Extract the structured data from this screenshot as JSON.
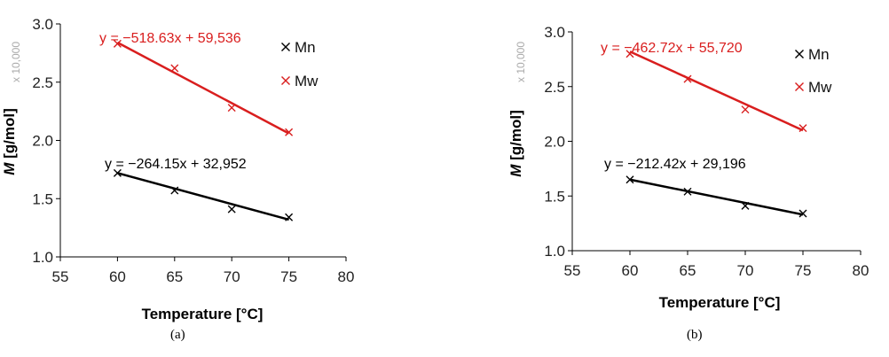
{
  "chart_data": [
    {
      "type": "scatter",
      "caption": "(a)",
      "xlabel": "Temperature [°C]",
      "ylabel_symbol": "M",
      "ylabel_unit": "[g/mol]",
      "ylabel_multiplier": "x 10,000",
      "xlim": [
        55,
        80
      ],
      "ylim": [
        1.0,
        3.0
      ],
      "xticks": [
        "55",
        "60",
        "65",
        "70",
        "75",
        "80"
      ],
      "yticks": [
        "1.0",
        "1.5",
        "2.0",
        "2.5",
        "3.0"
      ],
      "grid": false,
      "legend": "top-right",
      "series": [
        {
          "name": "Mn",
          "marker": "x",
          "color": "#000000",
          "x": [
            60,
            65,
            70,
            75
          ],
          "y": [
            1.72,
            1.57,
            1.41,
            1.34
          ],
          "trendline": {
            "equation": "y = −264.15x + 32,952",
            "y_start": 1.72,
            "y_end": 1.32
          }
        },
        {
          "name": "Mw",
          "marker": "x",
          "color": "#d91e1e",
          "x": [
            60,
            65,
            70,
            75
          ],
          "y": [
            2.83,
            2.62,
            2.28,
            2.07
          ],
          "trendline": {
            "equation": "y = −518.63x + 59,536",
            "y_start": 2.84,
            "y_end": 2.06
          }
        }
      ]
    },
    {
      "type": "scatter",
      "caption": "(b)",
      "xlabel": "Temperature [°C]",
      "ylabel_symbol": "M",
      "ylabel_unit": "[g/mol]",
      "ylabel_multiplier": "x 10,000",
      "xlim": [
        55,
        80
      ],
      "ylim": [
        1.0,
        3.0
      ],
      "xticks": [
        "55",
        "60",
        "65",
        "70",
        "75",
        "80"
      ],
      "yticks": [
        "1.0",
        "1.5",
        "2.0",
        "2.5",
        "3.0"
      ],
      "grid": false,
      "legend": "top-right",
      "series": [
        {
          "name": "Mn",
          "marker": "x",
          "color": "#000000",
          "x": [
            60,
            65,
            70,
            75
          ],
          "y": [
            1.65,
            1.54,
            1.41,
            1.34
          ],
          "trendline": {
            "equation": "y = −212.42x + 29,196",
            "y_start": 1.65,
            "y_end": 1.33
          }
        },
        {
          "name": "Mw",
          "marker": "x",
          "color": "#d91e1e",
          "x": [
            60,
            65,
            70,
            75
          ],
          "y": [
            2.8,
            2.57,
            2.29,
            2.12
          ],
          "trendline": {
            "equation": "y = −462.72x + 55,720",
            "y_start": 2.82,
            "y_end": 2.1
          }
        }
      ]
    }
  ]
}
